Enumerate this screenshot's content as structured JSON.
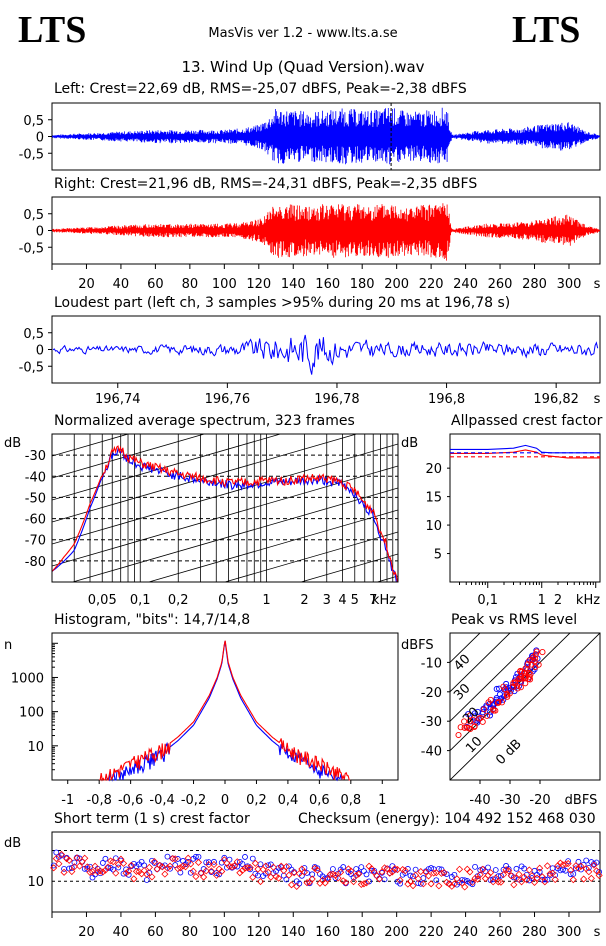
{
  "header": {
    "logo_left": "LTS",
    "logo_right": "LTS",
    "app": "MasVis ver 1.2 - www.lts.a.se",
    "file": "13. Wind Up (Quad Version).wav"
  },
  "panels": {
    "left": {
      "title": "Left: Crest=22,69 dB, RMS=-25,07 dBFS, Peak=-2,38 dBFS",
      "yticks": [
        "0,5",
        "0",
        "-0,5"
      ],
      "color": "#0000ff",
      "marker": 196.78
    },
    "right": {
      "title": "Right: Crest=21,96 dB, RMS=-24,31 dBFS, Peak=-2,35 dBFS",
      "yticks": [
        "0,5",
        "0",
        "-0,5"
      ],
      "color": "#ff0000"
    },
    "loud": {
      "title": "Loudest part (left  ch, 3 samples >95% during 20 ms at 196,78 s)",
      "yticks": [
        "0,5",
        "0",
        "-0,5"
      ],
      "xticks": [
        "196,74",
        "196,76",
        "196,78",
        "196,8",
        "196,82"
      ],
      "xunit": "s",
      "color": "#0000ff"
    },
    "spectrum": {
      "title": "Normalized average spectrum, 323 frames",
      "ylabel": "dB",
      "yticks": [
        "-30",
        "-40",
        "-50",
        "-60",
        "-70",
        "-80"
      ],
      "xticks": [
        "0,05",
        "0,1",
        "0,2",
        "0,5",
        "1",
        "2",
        "3",
        "4",
        "5",
        "7"
      ],
      "xunit": "kHz"
    },
    "crest": {
      "title": "Allpassed crest factor",
      "ylabel": "dB",
      "yticks": [
        "20",
        "15",
        "10",
        "5"
      ],
      "xticks": [
        "0,1",
        "1",
        "2"
      ],
      "xunit": "kHz"
    },
    "hist": {
      "title": "Histogram, \"bits\": 14,7/14,8",
      "ylabel": "n",
      "yticks": [
        "1000",
        "100",
        "10"
      ],
      "xticks": [
        "-1",
        "-0,8",
        "-0,6",
        "-0,4",
        "-0,2",
        "0",
        "0,2",
        "0,4",
        "0,6",
        "0,8",
        "1"
      ]
    },
    "pvr": {
      "title": "Peak vs RMS level",
      "ylabel": "dBFS",
      "yticks": [
        "-10",
        "-20",
        "-30",
        "-40"
      ],
      "xticks": [
        "-40",
        "-30",
        "-20"
      ],
      "xunit": "dBFS",
      "diag": [
        "40",
        "30",
        "20",
        "10",
        "0 dB"
      ]
    },
    "short": {
      "title": "Short term (1 s) crest factor",
      "checksum": "Checksum (energy):  104 492 152 468 030",
      "ylabel": "dB",
      "ytick": "10"
    }
  },
  "time_axis": {
    "ticks": [
      "20",
      "40",
      "60",
      "80",
      "100",
      "120",
      "140",
      "160",
      "180",
      "200",
      "220",
      "240",
      "260",
      "280",
      "300"
    ],
    "unit": "s"
  },
  "chart_data": [
    {
      "type": "line",
      "title": "Left: Crest=22,69 dB, RMS=-25,07 dBFS, Peak=-2,38 dBFS",
      "xlabel": "s",
      "xlim": [
        0,
        318
      ],
      "ylim": [
        -1,
        1
      ],
      "envelope": {
        "x": [
          0,
          20,
          40,
          60,
          80,
          100,
          110,
          120,
          126,
          130,
          140,
          150,
          160,
          170,
          180,
          190,
          196.78,
          200,
          210,
          220,
          229,
          232,
          250,
          270,
          290,
          300,
          310,
          318
        ],
        "y": [
          0.05,
          0.1,
          0.15,
          0.2,
          0.2,
          0.2,
          0.25,
          0.35,
          0.6,
          0.85,
          0.8,
          0.75,
          0.8,
          0.85,
          0.8,
          0.8,
          0.95,
          0.8,
          0.75,
          0.8,
          0.9,
          0.05,
          0.2,
          0.25,
          0.4,
          0.45,
          0.15,
          0.05
        ]
      }
    },
    {
      "type": "line",
      "title": "Right: Crest=21,96 dB, RMS=-24,31 dBFS, Peak=-2,35 dBFS",
      "xlabel": "s",
      "xlim": [
        0,
        318
      ],
      "ylim": [
        -1,
        1
      ],
      "envelope": {
        "x": [
          0,
          20,
          40,
          60,
          80,
          100,
          110,
          120,
          126,
          130,
          140,
          150,
          160,
          170,
          180,
          190,
          200,
          210,
          220,
          229,
          232,
          250,
          270,
          290,
          300,
          310,
          318
        ],
        "y": [
          0.05,
          0.1,
          0.15,
          0.2,
          0.2,
          0.2,
          0.25,
          0.35,
          0.6,
          0.85,
          0.8,
          0.75,
          0.8,
          0.85,
          0.8,
          0.8,
          0.85,
          0.75,
          0.8,
          0.95,
          0.05,
          0.2,
          0.25,
          0.4,
          0.5,
          0.15,
          0.05
        ]
      }
    },
    {
      "type": "line",
      "title": "Loudest part (left  ch, 3 samples >95% during 20 ms at 196,78 s)",
      "xlabel": "s",
      "xlim": [
        196.728,
        196.828
      ],
      "ylim": [
        -1,
        1
      ],
      "envelope": {
        "x": [
          196.73,
          196.74,
          196.75,
          196.76,
          196.765,
          196.77,
          196.775,
          196.78,
          196.79,
          196.8,
          196.81,
          196.82,
          196.828
        ],
        "y": [
          0.15,
          0.15,
          0.2,
          0.25,
          0.45,
          0.6,
          0.9,
          0.5,
          0.3,
          0.3,
          0.3,
          0.3,
          0.3
        ]
      }
    },
    {
      "type": "line",
      "title": "Normalized average spectrum, 323 frames",
      "xlabel": "kHz",
      "ylabel": "dB",
      "xlim": [
        0.02,
        11
      ],
      "ylim": [
        -90,
        -20
      ],
      "xscale": "log",
      "series": [
        {
          "color": "#0000ff",
          "x": [
            0.02,
            0.025,
            0.03,
            0.04,
            0.05,
            0.06,
            0.07,
            0.08,
            0.1,
            0.15,
            0.2,
            0.3,
            0.5,
            0.7,
            1,
            1.5,
            2,
            3,
            4,
            5,
            6,
            7,
            8,
            9,
            10,
            11
          ],
          "y": [
            -85,
            -80,
            -75,
            -55,
            -40,
            -30,
            -28,
            -32,
            -35,
            -38,
            -40,
            -42,
            -44,
            -44,
            -43,
            -43,
            -42,
            -42,
            -44,
            -48,
            -55,
            -58,
            -68,
            -75,
            -85,
            -90
          ]
        },
        {
          "color": "#ff0000",
          "x": [
            0.02,
            0.025,
            0.03,
            0.04,
            0.05,
            0.06,
            0.07,
            0.08,
            0.1,
            0.15,
            0.2,
            0.3,
            0.5,
            0.7,
            1,
            1.5,
            2,
            3,
            4,
            5,
            6,
            7,
            8,
            9,
            10,
            11
          ],
          "y": [
            -85,
            -78,
            -72,
            -53,
            -39,
            -29,
            -27,
            -31,
            -34,
            -37,
            -39,
            -41,
            -43,
            -43,
            -42,
            -42,
            -41,
            -41,
            -43,
            -47,
            -53,
            -56,
            -66,
            -73,
            -83,
            -89
          ]
        }
      ]
    },
    {
      "type": "line",
      "title": "Allpassed crest factor",
      "xlabel": "kHz",
      "ylabel": "dB",
      "xlim": [
        0.02,
        12
      ],
      "ylim": [
        0,
        26
      ],
      "xscale": "log",
      "series": [
        {
          "color": "#0000ff",
          "x": [
            0.02,
            0.1,
            0.3,
            0.5,
            0.8,
            1,
            1.5,
            3,
            8,
            12
          ],
          "y": [
            23.3,
            23.3,
            23.5,
            24,
            23.5,
            22.8,
            22.7,
            22.7,
            22.7,
            22.7
          ]
        },
        {
          "color": "#ff0000",
          "x": [
            0.02,
            0.1,
            0.3,
            0.5,
            0.8,
            1,
            1.5,
            3,
            8,
            12
          ],
          "y": [
            22.6,
            22.6,
            22.8,
            23.2,
            22.8,
            22.3,
            22.1,
            21.8,
            21.8,
            21.8
          ]
        },
        {
          "color": "#0000ff",
          "dashed": true,
          "x": [
            0.02,
            12
          ],
          "y": [
            22.7,
            22.7
          ]
        },
        {
          "color": "#ff0000",
          "dashed": true,
          "x": [
            0.02,
            12
          ],
          "y": [
            22,
            22
          ]
        }
      ]
    },
    {
      "type": "line",
      "title": "Histogram, \"bits\": 14,7/14,8",
      "ylabel": "n",
      "xlim": [
        -1.1,
        1.1
      ],
      "ylim": [
        1,
        20000
      ],
      "yscale": "log",
      "series": [
        {
          "color": "#0000ff",
          "x": [
            -0.75,
            -0.6,
            -0.4,
            -0.3,
            -0.2,
            -0.1,
            -0.05,
            -0.02,
            0,
            0.02,
            0.05,
            0.1,
            0.2,
            0.3,
            0.4,
            0.6,
            0.75
          ],
          "y": [
            1,
            2,
            6,
            14,
            40,
            250,
            900,
            2500,
            12000,
            2500,
            900,
            250,
            40,
            14,
            6,
            2,
            1
          ]
        },
        {
          "color": "#ff0000",
          "x": [
            -0.8,
            -0.6,
            -0.4,
            -0.3,
            -0.2,
            -0.1,
            -0.05,
            -0.02,
            0,
            0.02,
            0.05,
            0.1,
            0.2,
            0.3,
            0.4,
            0.6,
            0.8
          ],
          "y": [
            1,
            3,
            8,
            18,
            50,
            300,
            1000,
            2800,
            13000,
            2800,
            1000,
            300,
            50,
            18,
            8,
            3,
            1
          ]
        }
      ]
    },
    {
      "type": "scatter",
      "title": "Peak vs RMS level",
      "xlabel": "dBFS",
      "ylabel": "dBFS",
      "xlim": [
        -50,
        0
      ],
      "ylim": [
        -50,
        0
      ],
      "series": [
        {
          "color": "#0000ff",
          "x": [
            -45,
            -43,
            -41,
            -39,
            -37,
            -36,
            -34,
            -33,
            -31,
            -30,
            -28,
            -27,
            -26,
            -25,
            -24,
            -23,
            -22,
            -21,
            -20
          ],
          "y": [
            -32,
            -30,
            -29,
            -27,
            -26,
            -24,
            -23,
            -21,
            -20,
            -19,
            -17,
            -16,
            -15,
            -14,
            -12,
            -11,
            -10,
            -8,
            -6
          ]
        },
        {
          "color": "#ff0000",
          "x": [
            -46,
            -44,
            -42,
            -40,
            -38,
            -36,
            -35,
            -33,
            -32,
            -30,
            -29,
            -27,
            -26,
            -25,
            -24,
            -23,
            -22,
            -21,
            -20
          ],
          "y": [
            -33,
            -31,
            -30,
            -28,
            -27,
            -25,
            -24,
            -22,
            -21,
            -19,
            -18,
            -17,
            -16,
            -14,
            -13,
            -12,
            -10,
            -9,
            -7
          ]
        }
      ]
    },
    {
      "type": "scatter",
      "title": "Short term (1 s) crest factor",
      "ylabel": "dB",
      "xlabel": "s",
      "xlim": [
        0,
        318
      ],
      "ylim": [
        0,
        26
      ],
      "series": [
        {
          "color": "#0000ff",
          "x": [
            5,
            15,
            25,
            35,
            45,
            55,
            65,
            75,
            85,
            95,
            105,
            115,
            125,
            135,
            145,
            155,
            165,
            175,
            185,
            195,
            205,
            215,
            225,
            235,
            245,
            255,
            265,
            275,
            285,
            295,
            305,
            315
          ],
          "y": [
            17,
            15,
            14,
            16,
            14,
            13,
            16,
            15,
            15,
            14,
            16,
            15,
            13,
            12,
            12,
            12,
            12,
            12,
            12,
            12,
            12,
            12,
            12,
            11,
            12,
            13,
            12,
            12,
            13,
            14,
            14,
            15
          ]
        },
        {
          "color": "#ff0000",
          "x": [
            5,
            15,
            25,
            35,
            45,
            55,
            65,
            75,
            85,
            95,
            105,
            115,
            125,
            135,
            145,
            155,
            165,
            175,
            185,
            195,
            205,
            215,
            225,
            235,
            245,
            255,
            265,
            275,
            285,
            295,
            305,
            315
          ],
          "y": [
            16,
            15,
            14,
            15,
            14,
            13,
            15,
            15,
            14,
            14,
            15,
            14,
            12,
            12,
            11,
            12,
            11,
            11,
            12,
            12,
            11,
            11,
            11,
            11,
            11,
            12,
            12,
            11,
            12,
            13,
            13,
            14
          ]
        }
      ]
    }
  ]
}
